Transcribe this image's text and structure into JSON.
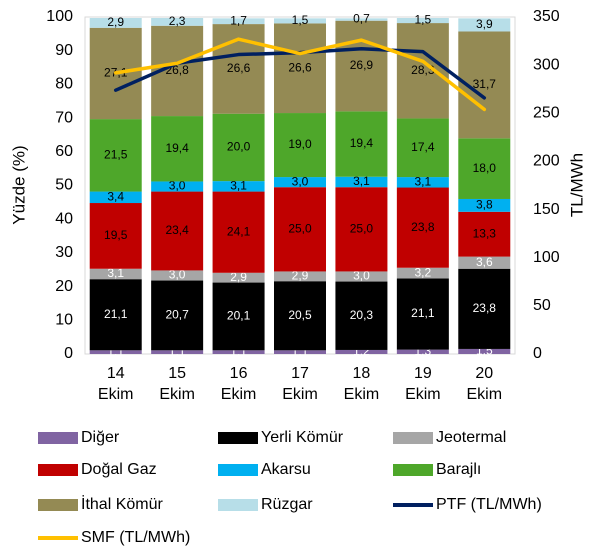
{
  "chart_data": {
    "type": "bar",
    "stacked": true,
    "categories": [
      [
        "14",
        "Ekim"
      ],
      [
        "15",
        "Ekim"
      ],
      [
        "16",
        "Ekim"
      ],
      [
        "17",
        "Ekim"
      ],
      [
        "18",
        "Ekim"
      ],
      [
        "19",
        "Ekim"
      ],
      [
        "20",
        "Ekim"
      ]
    ],
    "ylabel": "Yüzde (%)",
    "y2label": "TL/MWh",
    "ylim": [
      0,
      100
    ],
    "y2lim": [
      0,
      350
    ],
    "yticks": [
      0,
      10,
      20,
      30,
      40,
      50,
      60,
      70,
      80,
      90,
      100
    ],
    "y2ticks": [
      0,
      50,
      100,
      150,
      200,
      250,
      300,
      350
    ],
    "series": [
      {
        "name": "Diğer",
        "color": "#8064A2",
        "label_color": "#ffffff",
        "values": [
          1.1,
          1.1,
          1.1,
          1.1,
          1.2,
          1.3,
          1.5
        ],
        "labels": [
          "1,1",
          "1,1",
          "1,1",
          "1,1",
          "1,2",
          "1,3",
          "1,5"
        ]
      },
      {
        "name": "Yerli Kömür",
        "color": "#000000",
        "label_color": "#ffffff",
        "values": [
          21.1,
          20.7,
          20.1,
          20.5,
          20.3,
          21.1,
          23.8
        ],
        "labels": [
          "21,1",
          "20,7",
          "20,1",
          "20,5",
          "20,3",
          "21,1",
          "23,8"
        ]
      },
      {
        "name": "Jeotermal",
        "color": "#A6A6A6",
        "label_color": "#ffffff",
        "values": [
          3.1,
          3.0,
          2.9,
          2.9,
          3.0,
          3.2,
          3.6
        ],
        "labels": [
          "3,1",
          "3,0",
          "2,9",
          "2,9",
          "3,0",
          "3,2",
          "3,6"
        ]
      },
      {
        "name": "Doğal Gaz",
        "color": "#C00000",
        "label_color": "#000000",
        "values": [
          19.5,
          23.4,
          24.1,
          25.0,
          25.0,
          23.8,
          13.3
        ],
        "labels": [
          "19,5",
          "23,4",
          "24,1",
          "25,0",
          "25,0",
          "23,8",
          "13,3"
        ]
      },
      {
        "name": "Akarsu",
        "color": "#00B0F0",
        "label_color": "#000000",
        "values": [
          3.4,
          3.0,
          3.1,
          3.0,
          3.1,
          3.1,
          3.8
        ],
        "labels": [
          "3,4",
          "3,0",
          "3,1",
          "3,0",
          "3,1",
          "3,1",
          "3,8"
        ]
      },
      {
        "name": "Barajlı",
        "color": "#4EA72A",
        "label_color": "#000000",
        "values": [
          21.5,
          19.4,
          20.0,
          19.0,
          19.4,
          17.4,
          18.0
        ],
        "labels": [
          "21,5",
          "19,4",
          "20,0",
          "19,0",
          "19,4",
          "17,4",
          "18,0"
        ]
      },
      {
        "name": "İthal Kömür",
        "color": "#948A54",
        "label_color": "#000000",
        "values": [
          27.1,
          26.8,
          26.6,
          26.6,
          26.9,
          28.3,
          31.7
        ],
        "labels": [
          "27,1",
          "26,8",
          "26,6",
          "26,6",
          "26,9",
          "28,3",
          "31,7"
        ]
      },
      {
        "name": "Rüzgar",
        "color": "#B7DEE8",
        "label_color": "#000000",
        "values": [
          2.9,
          2.3,
          1.7,
          1.5,
          0.7,
          1.5,
          3.9
        ],
        "labels": [
          "2,9",
          "2,3",
          "1,7",
          "1,5",
          "0,7",
          "1,5",
          "3,9"
        ]
      }
    ],
    "lines": [
      {
        "name": "PTF (TL/MWh)",
        "color": "#002060",
        "axis": "right",
        "values": [
          274,
          302,
          311,
          313,
          317,
          314,
          266
        ]
      },
      {
        "name": "SMF (TL/MWh)",
        "color": "#FFC000",
        "axis": "right",
        "values": [
          292,
          302,
          327,
          312,
          326,
          304,
          254
        ]
      }
    ],
    "legend_position": "bottom"
  }
}
